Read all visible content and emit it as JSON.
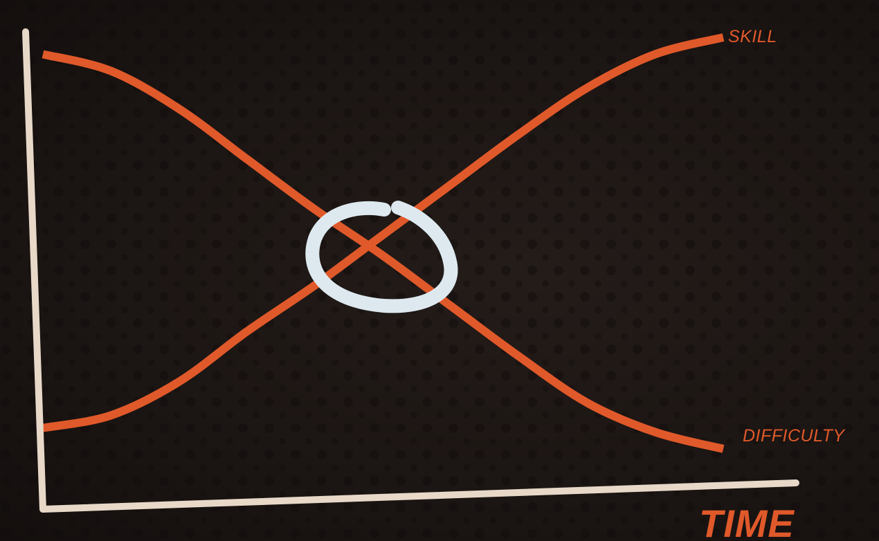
{
  "chart_data": {
    "type": "line",
    "title": "",
    "xlabel": "TIME",
    "ylabel": "",
    "x": [
      0,
      0.1,
      0.2,
      0.3,
      0.4,
      0.5,
      0.6,
      0.7,
      0.8,
      0.9,
      1.0
    ],
    "series": [
      {
        "name": "SKILL",
        "values": [
          0.06,
          0.09,
          0.17,
          0.29,
          0.4,
          0.52,
          0.64,
          0.76,
          0.87,
          0.95,
          0.99
        ]
      },
      {
        "name": "DIFFICULTY",
        "values": [
          0.95,
          0.91,
          0.82,
          0.7,
          0.58,
          0.47,
          0.35,
          0.23,
          0.12,
          0.05,
          0.01
        ]
      }
    ],
    "xlim": [
      0,
      1
    ],
    "ylim": [
      0,
      1
    ],
    "grid": false,
    "legend": "inline-right",
    "annotation": "circled-intersection",
    "colors": {
      "series": "#e0592a",
      "axis": "#e8d8c8",
      "circle": "#dde9ef"
    }
  }
}
